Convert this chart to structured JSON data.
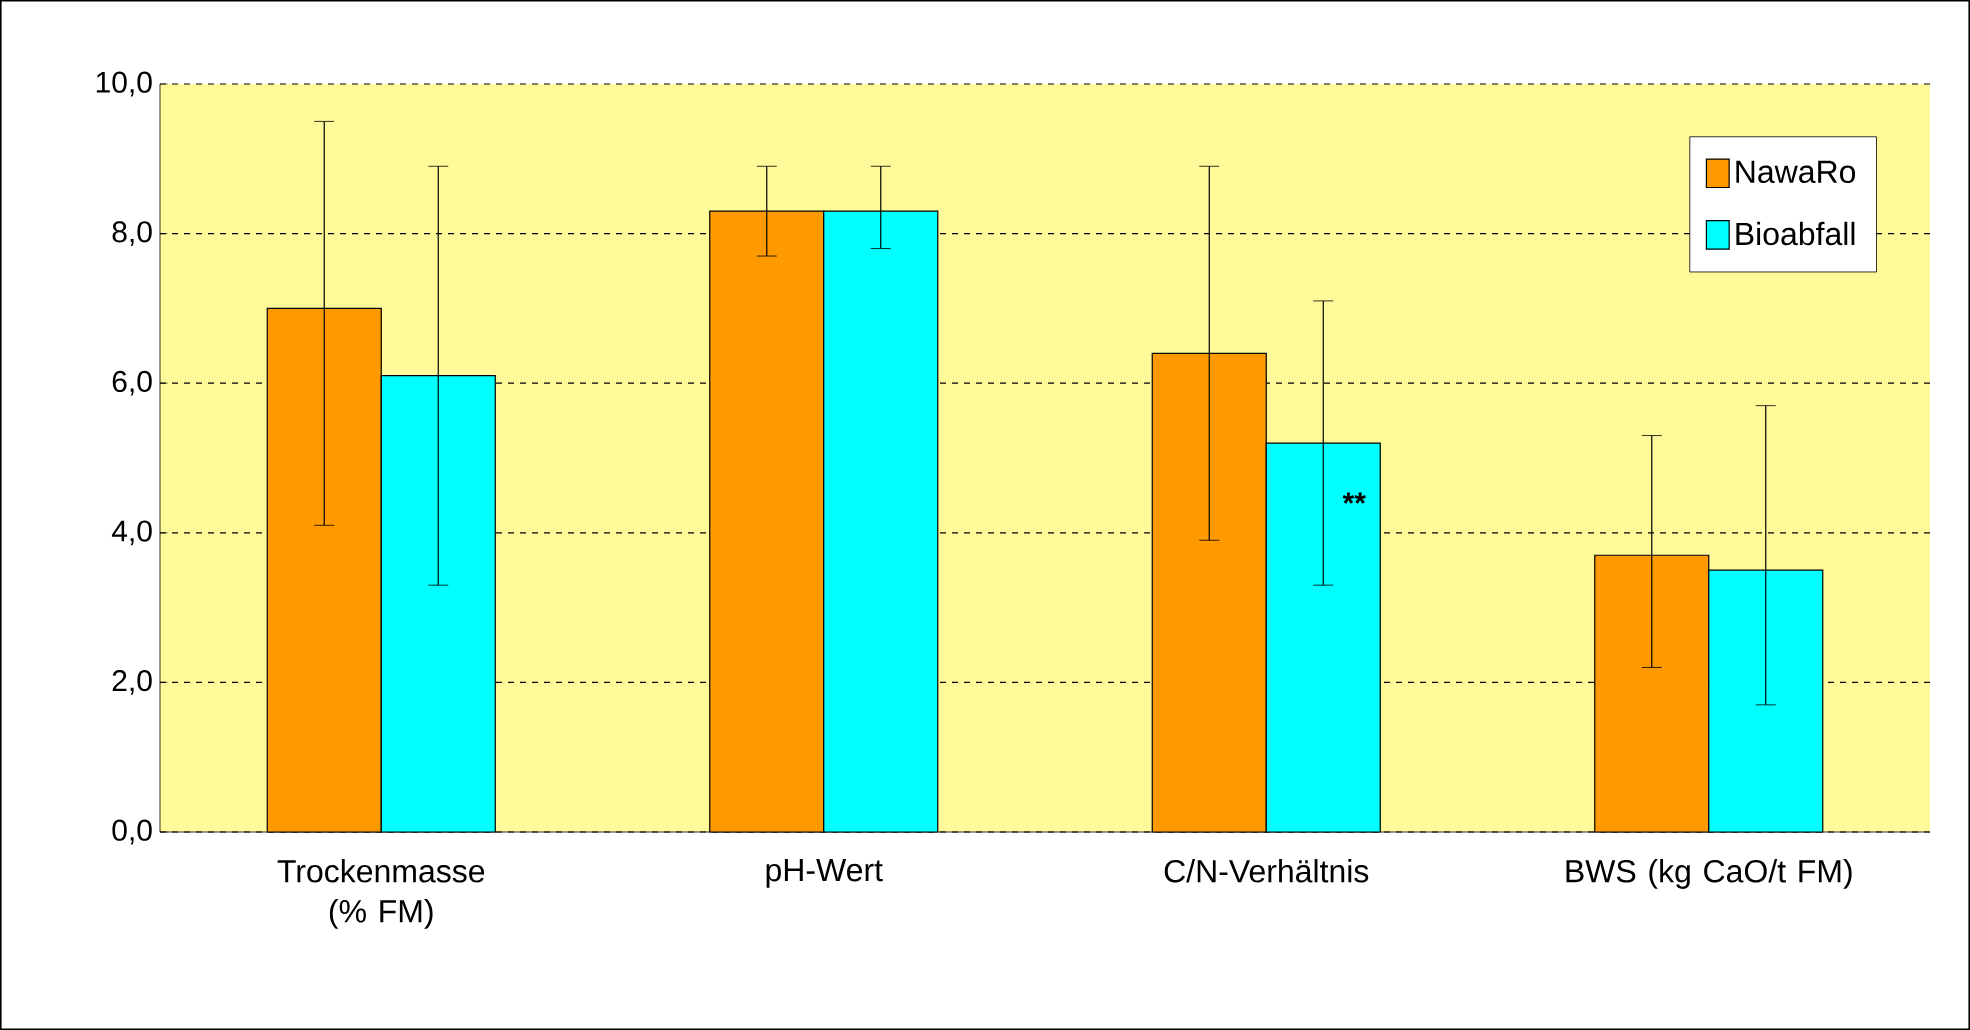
{
  "chart_data": {
    "type": "bar",
    "categories": [
      "Trockenmasse (% FM)",
      "pH-Wert",
      "C/N-Verhältnis",
      "BWS (kg CaO/t FM)"
    ],
    "series": [
      {
        "name": "NawaRo",
        "color": "#ff9900",
        "values": [
          7.0,
          8.3,
          6.4,
          3.7
        ],
        "errors": [
          [
            4.1,
            9.5
          ],
          [
            7.7,
            8.9
          ],
          [
            3.9,
            8.9
          ],
          [
            2.2,
            5.3
          ]
        ]
      },
      {
        "name": "Bioabfall",
        "color": "#00ffff",
        "values": [
          6.1,
          8.3,
          5.2,
          3.5
        ],
        "errors": [
          [
            3.3,
            8.9
          ],
          [
            7.8,
            8.9
          ],
          [
            3.3,
            7.1
          ],
          [
            1.7,
            5.7
          ]
        ]
      }
    ],
    "ylim": [
      0,
      10
    ],
    "yticks": [
      {
        "value": 0,
        "label": "0,0"
      },
      {
        "value": 2,
        "label": "2,0"
      },
      {
        "value": 4,
        "label": "4,0"
      },
      {
        "value": 6,
        "label": "6,0"
      },
      {
        "value": 8,
        "label": "8,0"
      },
      {
        "value": 10,
        "label": "10,0"
      }
    ],
    "grid": "y",
    "legend": "top right",
    "annotations": [
      {
        "text": "**",
        "x": "C/N-Verhältnis",
        "y": 4.4
      }
    ]
  }
}
